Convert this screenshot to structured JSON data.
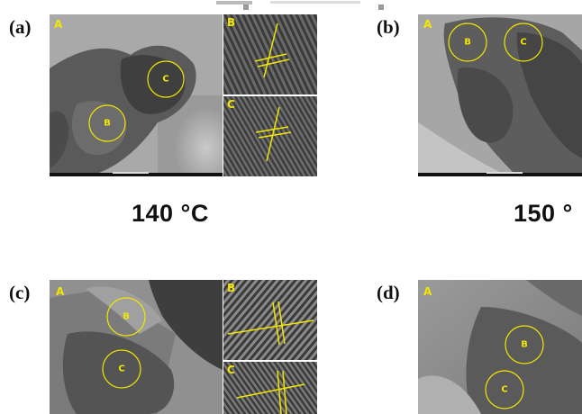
{
  "panels": {
    "a": {
      "label": "(a)",
      "main_label": "A",
      "inset_top_label": "B",
      "inset_bottom_label": "C",
      "circle_labels": [
        "C",
        "B"
      ],
      "temperature": "140 °C"
    },
    "b": {
      "label": "(b)",
      "main_label": "A",
      "circle_labels": [
        "B",
        "C"
      ],
      "temperature": "150 °"
    },
    "c": {
      "label": "(c)",
      "main_label": "A",
      "inset_top_label": "B",
      "inset_bottom_label": "C",
      "circle_labels": [
        "B",
        "C"
      ]
    },
    "d": {
      "label": "(d)",
      "main_label": "A",
      "circle_labels": [
        "B",
        "C"
      ]
    }
  },
  "colors": {
    "annotation": "#f3e600",
    "tem_background": "#7a7a7a"
  }
}
